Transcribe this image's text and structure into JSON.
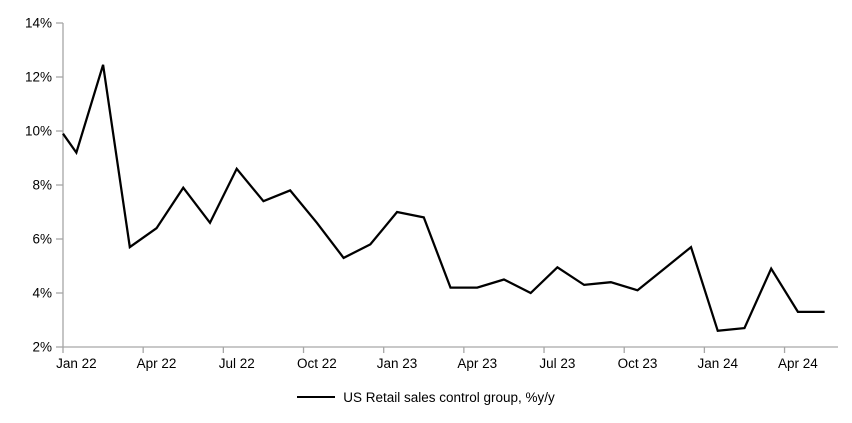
{
  "chart": {
    "legend_label": "US Retail sales control group, %y/y",
    "line_color": "#000000",
    "axis_color": "#a6a6a6",
    "text_color": "#000000",
    "background": "#ffffff"
  },
  "chart_data": {
    "type": "line",
    "title": "",
    "x": [
      "Jan 22",
      "Feb 22",
      "Mar 22",
      "Apr 22",
      "May 22",
      "Jun 22",
      "Jul 22",
      "Aug 22",
      "Sep 22",
      "Oct 22",
      "Nov 22",
      "Dec 22",
      "Jan 23",
      "Feb 23",
      "Mar 23",
      "Apr 23",
      "May 23",
      "Jun 23",
      "Jul 23",
      "Aug 23",
      "Sep 23",
      "Oct 23",
      "Nov 23",
      "Dec 23",
      "Jan 24",
      "Feb 24",
      "Mar 24",
      "Apr 24",
      "May 24"
    ],
    "series": [
      {
        "name": "US Retail sales control group, %y/y",
        "values": [
          9.2,
          12.45,
          5.7,
          6.4,
          7.9,
          6.6,
          8.6,
          7.4,
          7.8,
          6.6,
          5.3,
          5.8,
          7.0,
          6.8,
          4.2,
          4.2,
          4.5,
          4.0,
          4.95,
          4.3,
          4.4,
          4.1,
          4.9,
          5.7,
          2.6,
          2.7,
          4.9,
          3.3,
          3.3
        ]
      }
    ],
    "lead_in_value_at_axis": 9.9,
    "ylim": [
      2,
      14
    ],
    "ytick_step": 2,
    "ytick_labels": [
      "2%",
      "4%",
      "6%",
      "8%",
      "10%",
      "12%",
      "14%"
    ],
    "xtick_labels": [
      "Jan 22",
      "Apr 22",
      "Jul 22",
      "Oct 22",
      "Jan 23",
      "Apr 23",
      "Jul 23",
      "Oct 23",
      "Jan 24",
      "Apr 24"
    ],
    "xtick_every_n_categories": 3,
    "grid": false,
    "legend_position": "bottom-center",
    "xlabel": "",
    "ylabel": ""
  }
}
